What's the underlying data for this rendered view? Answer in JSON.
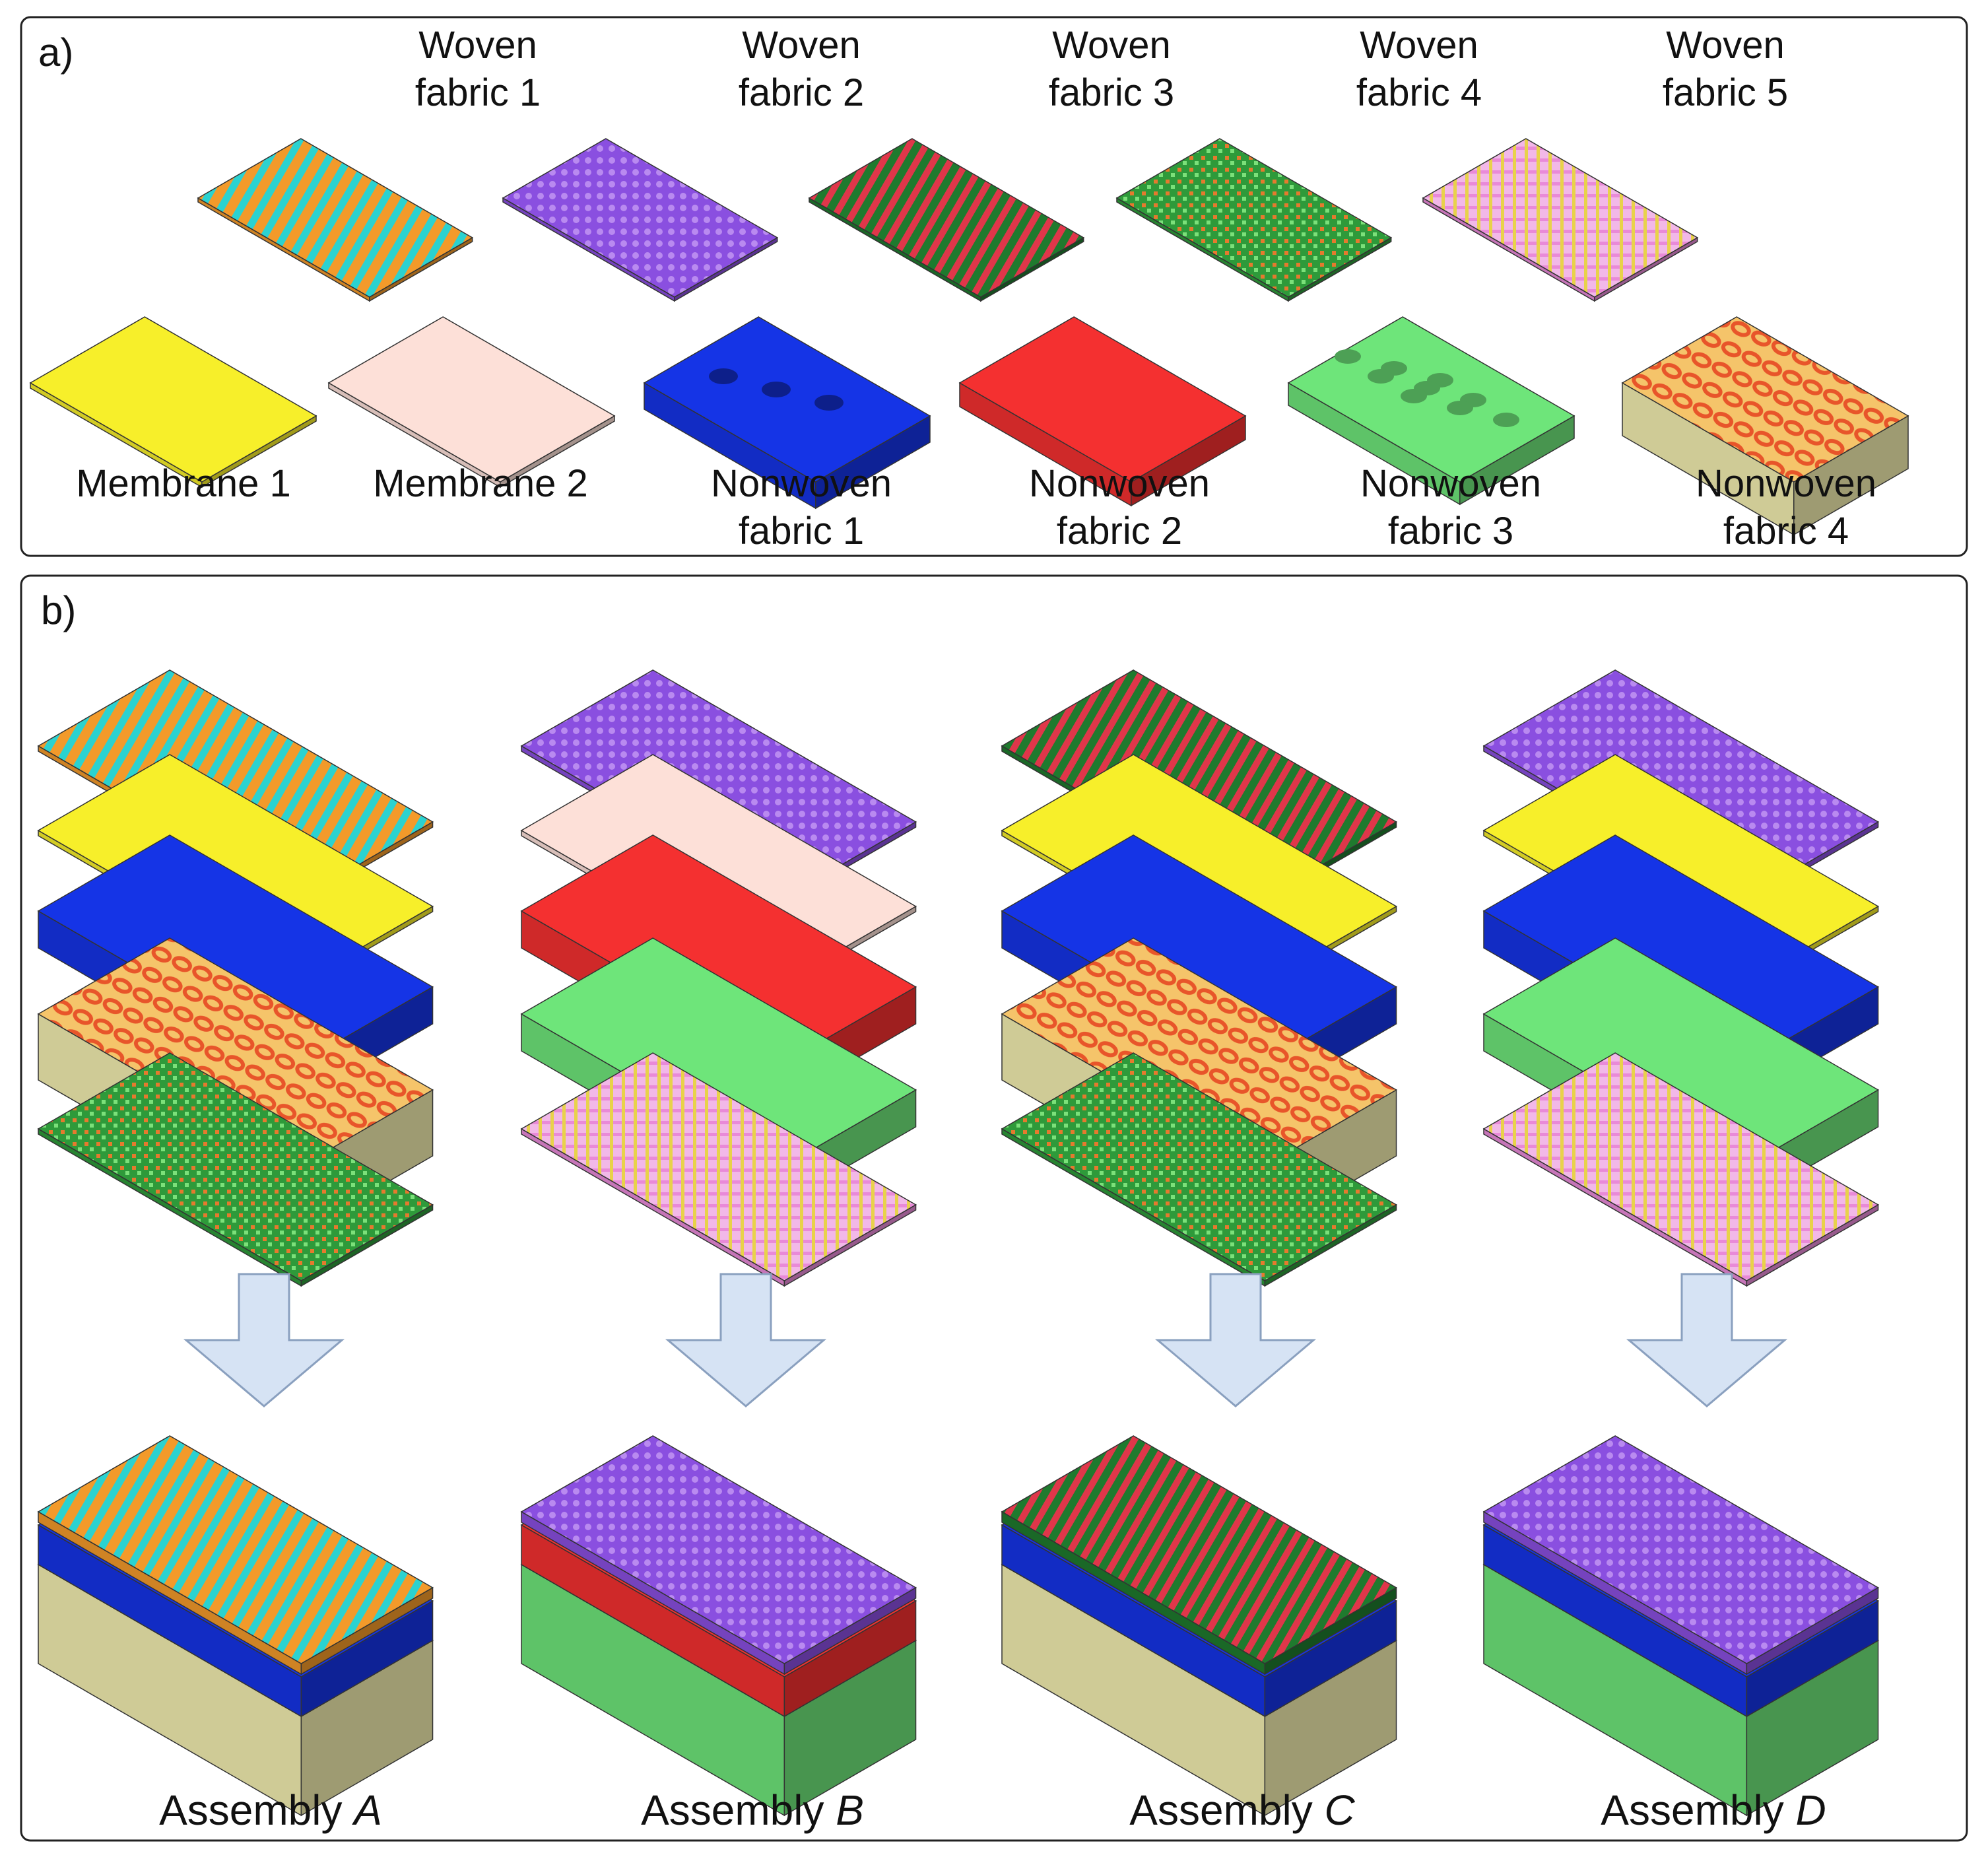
{
  "panel_a": {
    "label": "a)",
    "woven": [
      {
        "line1": "Woven",
        "line2": "fabric 1",
        "colors": [
          "#f39a2a",
          "#2bd2d0"
        ]
      },
      {
        "line1": "Woven",
        "line2": "fabric 2",
        "colors": [
          "#8a4fe0",
          "#b98af0"
        ]
      },
      {
        "line1": "Woven",
        "line2": "fabric 3",
        "colors": [
          "#1f7a2e",
          "#e0364a"
        ]
      },
      {
        "line1": "Woven",
        "line2": "fabric 4",
        "colors": [
          "#2e9a3a",
          "#e57a2e"
        ]
      },
      {
        "line1": "Woven",
        "line2": "fabric 5",
        "colors": [
          "#e98ad8",
          "#e8d24a"
        ]
      }
    ],
    "bottom": [
      {
        "line1": "Membrane 1",
        "line2": "",
        "kind": "membrane",
        "color": "#f7ef2a"
      },
      {
        "line1": "Membrane 2",
        "line2": "",
        "kind": "membrane",
        "color": "#fde0d8"
      },
      {
        "line1": "Nonwoven",
        "line2": "fabric 1",
        "kind": "slots",
        "color": "#1534e6"
      },
      {
        "line1": "Nonwoven",
        "line2": "fabric 2",
        "kind": "slab",
        "color": "#f43030"
      },
      {
        "line1": "Nonwoven",
        "line2": "fabric 3",
        "kind": "holes",
        "color": "#6ee57a"
      },
      {
        "line1": "Nonwoven",
        "line2": "fabric 4",
        "kind": "spacer",
        "color": "#e8552a"
      }
    ]
  },
  "panel_b": {
    "label": "b)",
    "arrow_color": "#d6e3f4",
    "assemblies": [
      {
        "prefix": "Assembly ",
        "letter": "A"
      },
      {
        "prefix": "Assembly ",
        "letter": "B"
      },
      {
        "prefix": "Assembly ",
        "letter": "C"
      },
      {
        "prefix": "Assembly ",
        "letter": "D"
      }
    ]
  }
}
